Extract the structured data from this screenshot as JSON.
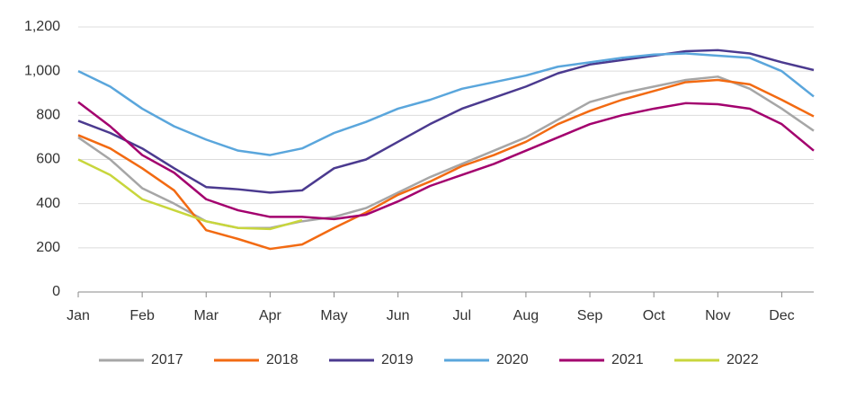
{
  "chart_data": {
    "type": "line",
    "x": [
      0,
      0.5,
      1,
      1.5,
      2,
      2.5,
      3,
      3.5,
      4,
      4.5,
      5,
      5.5,
      6,
      6.5,
      7,
      7.5,
      8,
      8.5,
      9,
      9.5,
      10,
      10.5,
      11,
      11.5
    ],
    "xlim": [
      0,
      11.5
    ],
    "xticks": [
      {
        "value": 0,
        "label": "Jan"
      },
      {
        "value": 1,
        "label": "Feb"
      },
      {
        "value": 2,
        "label": "Mar"
      },
      {
        "value": 3,
        "label": "Apr"
      },
      {
        "value": 4,
        "label": "May"
      },
      {
        "value": 5,
        "label": "Jun"
      },
      {
        "value": 6,
        "label": "Jul"
      },
      {
        "value": 7,
        "label": "Aug"
      },
      {
        "value": 8,
        "label": "Sep"
      },
      {
        "value": 9,
        "label": "Oct"
      },
      {
        "value": 10,
        "label": "Nov"
      },
      {
        "value": 11,
        "label": "Dec"
      }
    ],
    "ylim": [
      0,
      1200
    ],
    "yticks": [
      0,
      200,
      400,
      600,
      800,
      {
        "value": 1000,
        "label": "1,000"
      },
      {
        "value": 1200,
        "label": "1,200"
      }
    ],
    "grid": true,
    "legend": "bottom",
    "series": [
      {
        "name": "2017",
        "color": "#a6a6a6",
        "values": [
          700,
          600,
          470,
          400,
          320,
          290,
          290,
          320,
          340,
          380,
          450,
          520,
          580,
          640,
          700,
          780,
          860,
          900,
          930,
          960,
          975,
          920,
          830,
          730
        ]
      },
      {
        "name": "2018",
        "color": "#f26a12",
        "values": [
          710,
          650,
          560,
          460,
          280,
          240,
          195,
          215,
          290,
          360,
          440,
          500,
          570,
          620,
          680,
          760,
          820,
          870,
          910,
          950,
          960,
          940,
          870,
          795
        ]
      },
      {
        "name": "2019",
        "color": "#4b3a8f",
        "values": [
          775,
          720,
          650,
          560,
          475,
          465,
          450,
          460,
          560,
          600,
          680,
          760,
          830,
          880,
          930,
          990,
          1030,
          1050,
          1070,
          1090,
          1095,
          1080,
          1040,
          1005
        ]
      },
      {
        "name": "2020",
        "color": "#5aa6dc",
        "values": [
          1000,
          930,
          830,
          750,
          690,
          640,
          620,
          650,
          720,
          770,
          830,
          870,
          920,
          950,
          980,
          1020,
          1040,
          1060,
          1075,
          1080,
          1070,
          1060,
          1000,
          885
        ]
      },
      {
        "name": "2021",
        "color": "#a3006e",
        "values": [
          860,
          750,
          620,
          540,
          420,
          370,
          340,
          340,
          330,
          350,
          410,
          480,
          530,
          580,
          640,
          700,
          760,
          800,
          830,
          855,
          850,
          830,
          760,
          640
        ]
      },
      {
        "name": "2022",
        "color": "#c8d63c",
        "values": [
          600,
          530,
          420,
          370,
          320,
          290,
          285,
          325,
          null,
          null,
          null,
          null,
          null,
          null,
          null,
          null,
          null,
          null,
          null,
          null,
          null,
          null,
          null,
          null
        ]
      }
    ]
  }
}
